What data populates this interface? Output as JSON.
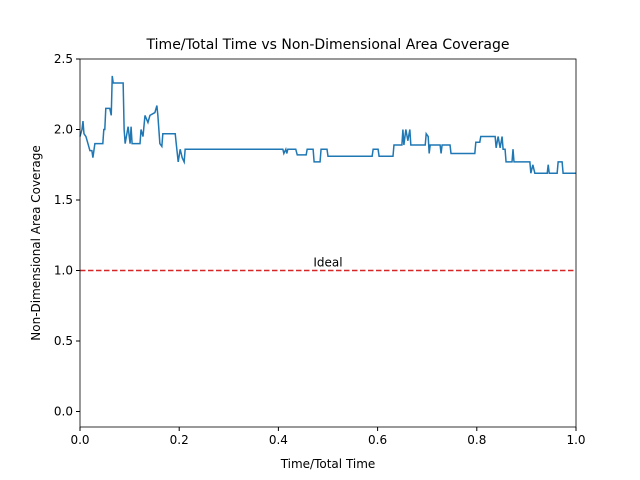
{
  "chart_data": {
    "type": "line",
    "title": "Time/Total Time vs Non-Dimensional Area Coverage",
    "xlabel": "Time/Total Time",
    "ylabel": "Non-Dimensional Area Coverage",
    "xlim": [
      0,
      1
    ],
    "xticks": [
      {
        "value": 0,
        "label": "0.0"
      },
      0.2,
      0.4,
      0.6,
      0.8,
      {
        "value": 1,
        "label": "1.0"
      }
    ],
    "ylim": [
      -0.11,
      2.5
    ],
    "yticks": [
      {
        "value": 0,
        "label": "0.0"
      },
      0.5,
      {
        "value": 1,
        "label": "1.0"
      },
      1.5,
      {
        "value": 2,
        "label": "2.0"
      },
      2.5
    ],
    "grid": false,
    "series": [
      {
        "color": "#1f77b4",
        "x": [
          0,
          0.004,
          0.006,
          0.008,
          0.012,
          0.016,
          0.02,
          0.024,
          0.026,
          0.028,
          0.03,
          0.046,
          0.048,
          0.05,
          0.052,
          0.06,
          0.063,
          0.065,
          0.067,
          0.087,
          0.089,
          0.091,
          0.097,
          0.101,
          0.103,
          0.105,
          0.121,
          0.123,
          0.127,
          0.131,
          0.137,
          0.141,
          0.151,
          0.155,
          0.157,
          0.161,
          0.165,
          0.167,
          0.192,
          0.194,
          0.198,
          0.202,
          0.206,
          0.21,
          0.212,
          0.409,
          0.411,
          0.415,
          0.417,
          0.419,
          0.435,
          0.438,
          0.456,
          0.458,
          0.47,
          0.472,
          0.484,
          0.486,
          0.498,
          0.5,
          0.589,
          0.591,
          0.601,
          0.603,
          0.631,
          0.633,
          0.649,
          0.651,
          0.653,
          0.657,
          0.661,
          0.665,
          0.667,
          0.696,
          0.698,
          0.702,
          0.704,
          0.706,
          0.726,
          0.728,
          0.73,
          0.746,
          0.748,
          0.796,
          0.798,
          0.806,
          0.808,
          0.837,
          0.839,
          0.843,
          0.847,
          0.851,
          0.853,
          0.857,
          0.859,
          0.871,
          0.873,
          0.875,
          0.907,
          0.909,
          0.913,
          0.917,
          0.942,
          0.944,
          0.946,
          0.962,
          0.964,
          0.972,
          0.974,
          1
        ],
        "values": [
          1.95,
          2.0,
          2.06,
          1.97,
          1.95,
          1.9,
          1.85,
          1.85,
          1.8,
          1.85,
          1.9,
          1.9,
          2.0,
          2.0,
          2.15,
          2.15,
          2.1,
          2.38,
          2.33,
          2.33,
          2.0,
          1.9,
          2.02,
          1.9,
          2.02,
          1.9,
          1.9,
          2.0,
          1.95,
          2.1,
          2.05,
          2.1,
          2.12,
          2.17,
          2.1,
          1.9,
          1.88,
          1.97,
          1.97,
          1.9,
          1.77,
          1.86,
          1.8,
          1.77,
          1.86,
          1.86,
          1.83,
          1.86,
          1.83,
          1.86,
          1.86,
          1.82,
          1.82,
          1.86,
          1.86,
          1.77,
          1.77,
          1.86,
          1.86,
          1.81,
          1.81,
          1.86,
          1.86,
          1.81,
          1.81,
          1.89,
          1.89,
          2.0,
          1.89,
          2.0,
          1.92,
          2.0,
          1.89,
          1.89,
          1.97,
          1.95,
          1.83,
          1.89,
          1.89,
          1.83,
          1.89,
          1.89,
          1.83,
          1.83,
          1.91,
          1.91,
          1.95,
          1.95,
          1.87,
          1.95,
          1.87,
          1.95,
          1.86,
          1.86,
          1.77,
          1.77,
          1.86,
          1.77,
          1.77,
          1.69,
          1.75,
          1.69,
          1.69,
          1.75,
          1.69,
          1.69,
          1.77,
          1.77,
          1.69,
          1.69
        ]
      }
    ],
    "hline": {
      "value": 1,
      "color": "#d62728",
      "label": "Ideal"
    }
  }
}
